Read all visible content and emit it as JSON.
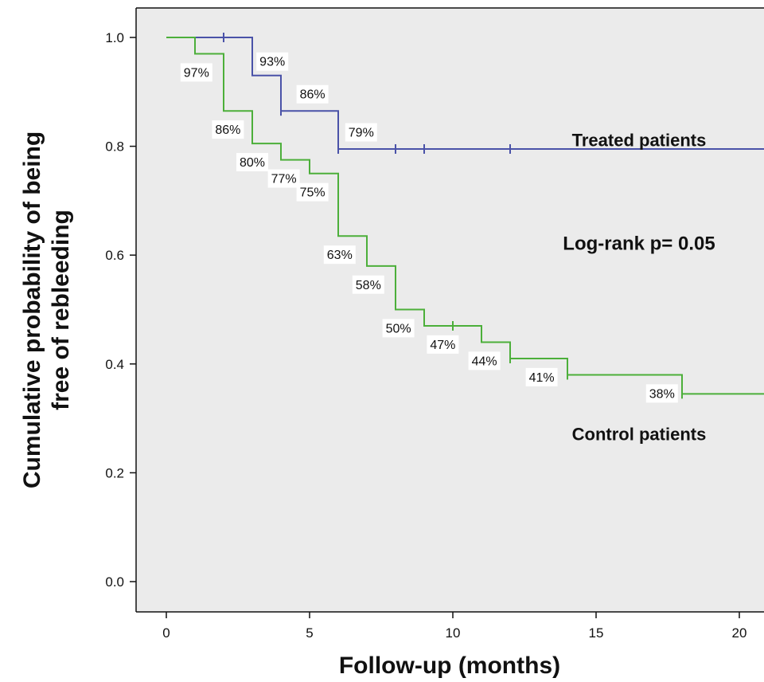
{
  "chart_data": {
    "type": "line",
    "subtype": "kaplan-meier-step",
    "xlabel": "Follow-up (months)",
    "ylabel_lines": [
      "Cumulative probability of being",
      "free of rebleeding"
    ],
    "xlim": [
      0,
      21
    ],
    "ylim": [
      0,
      1.0
    ],
    "x_ticks": [
      0,
      5,
      10,
      15,
      20
    ],
    "y_ticks": [
      0.0,
      0.2,
      0.4,
      0.6,
      0.8,
      1.0
    ],
    "y_tick_labels": [
      "0.0",
      "0.2",
      "0.4",
      "0.6",
      "0.8",
      "1.0"
    ],
    "grid": false,
    "plot_background": "#ebebeb",
    "annotations": [
      {
        "text": "Treated patients",
        "x": 16.5,
        "y": 0.8
      },
      {
        "text": "Log-rank p= 0.05",
        "x": 16.5,
        "y": 0.61
      },
      {
        "text": "Control patients",
        "x": 16.5,
        "y": 0.26
      }
    ],
    "series": [
      {
        "color": "#4a52a8",
        "steps": [
          {
            "x": 0,
            "y": 1.0
          },
          {
            "x": 3,
            "y": 0.93
          },
          {
            "x": 4,
            "y": 0.865
          },
          {
            "x": 6,
            "y": 0.795
          }
        ],
        "x_end": 21,
        "censored_x": [
          2,
          4,
          6,
          8,
          9,
          12
        ],
        "labels": [
          {
            "text": "93%",
            "x": 3.7,
            "y": 0.955
          },
          {
            "text": "86%",
            "x": 5.1,
            "y": 0.895
          },
          {
            "text": "79%",
            "x": 6.8,
            "y": 0.825
          }
        ]
      },
      {
        "color": "#4caf3a",
        "steps": [
          {
            "x": 0,
            "y": 1.0
          },
          {
            "x": 1,
            "y": 0.97
          },
          {
            "x": 2,
            "y": 0.865
          },
          {
            "x": 3,
            "y": 0.805
          },
          {
            "x": 4,
            "y": 0.775
          },
          {
            "x": 5,
            "y": 0.75
          },
          {
            "x": 6,
            "y": 0.635
          },
          {
            "x": 7,
            "y": 0.58
          },
          {
            "x": 8,
            "y": 0.5
          },
          {
            "x": 9,
            "y": 0.47
          },
          {
            "x": 11,
            "y": 0.44
          },
          {
            "x": 12,
            "y": 0.41
          },
          {
            "x": 14,
            "y": 0.38
          },
          {
            "x": 18,
            "y": 0.345
          }
        ],
        "x_end": 21,
        "censored_x": [
          10,
          12,
          14,
          18
        ],
        "labels": [
          {
            "text": "97%",
            "x": 1.05,
            "y": 0.935
          },
          {
            "text": "86%",
            "x": 2.15,
            "y": 0.83
          },
          {
            "text": "80%",
            "x": 3.0,
            "y": 0.77
          },
          {
            "text": "77%",
            "x": 4.1,
            "y": 0.74
          },
          {
            "text": "75%",
            "x": 5.1,
            "y": 0.715
          },
          {
            "text": "63%",
            "x": 6.05,
            "y": 0.6
          },
          {
            "text": "58%",
            "x": 7.05,
            "y": 0.545
          },
          {
            "text": "50%",
            "x": 8.1,
            "y": 0.465
          },
          {
            "text": "47%",
            "x": 9.65,
            "y": 0.435
          },
          {
            "text": "44%",
            "x": 11.1,
            "y": 0.405
          },
          {
            "text": "41%",
            "x": 13.1,
            "y": 0.375
          },
          {
            "text": "38%",
            "x": 17.3,
            "y": 0.345
          }
        ]
      }
    ]
  }
}
